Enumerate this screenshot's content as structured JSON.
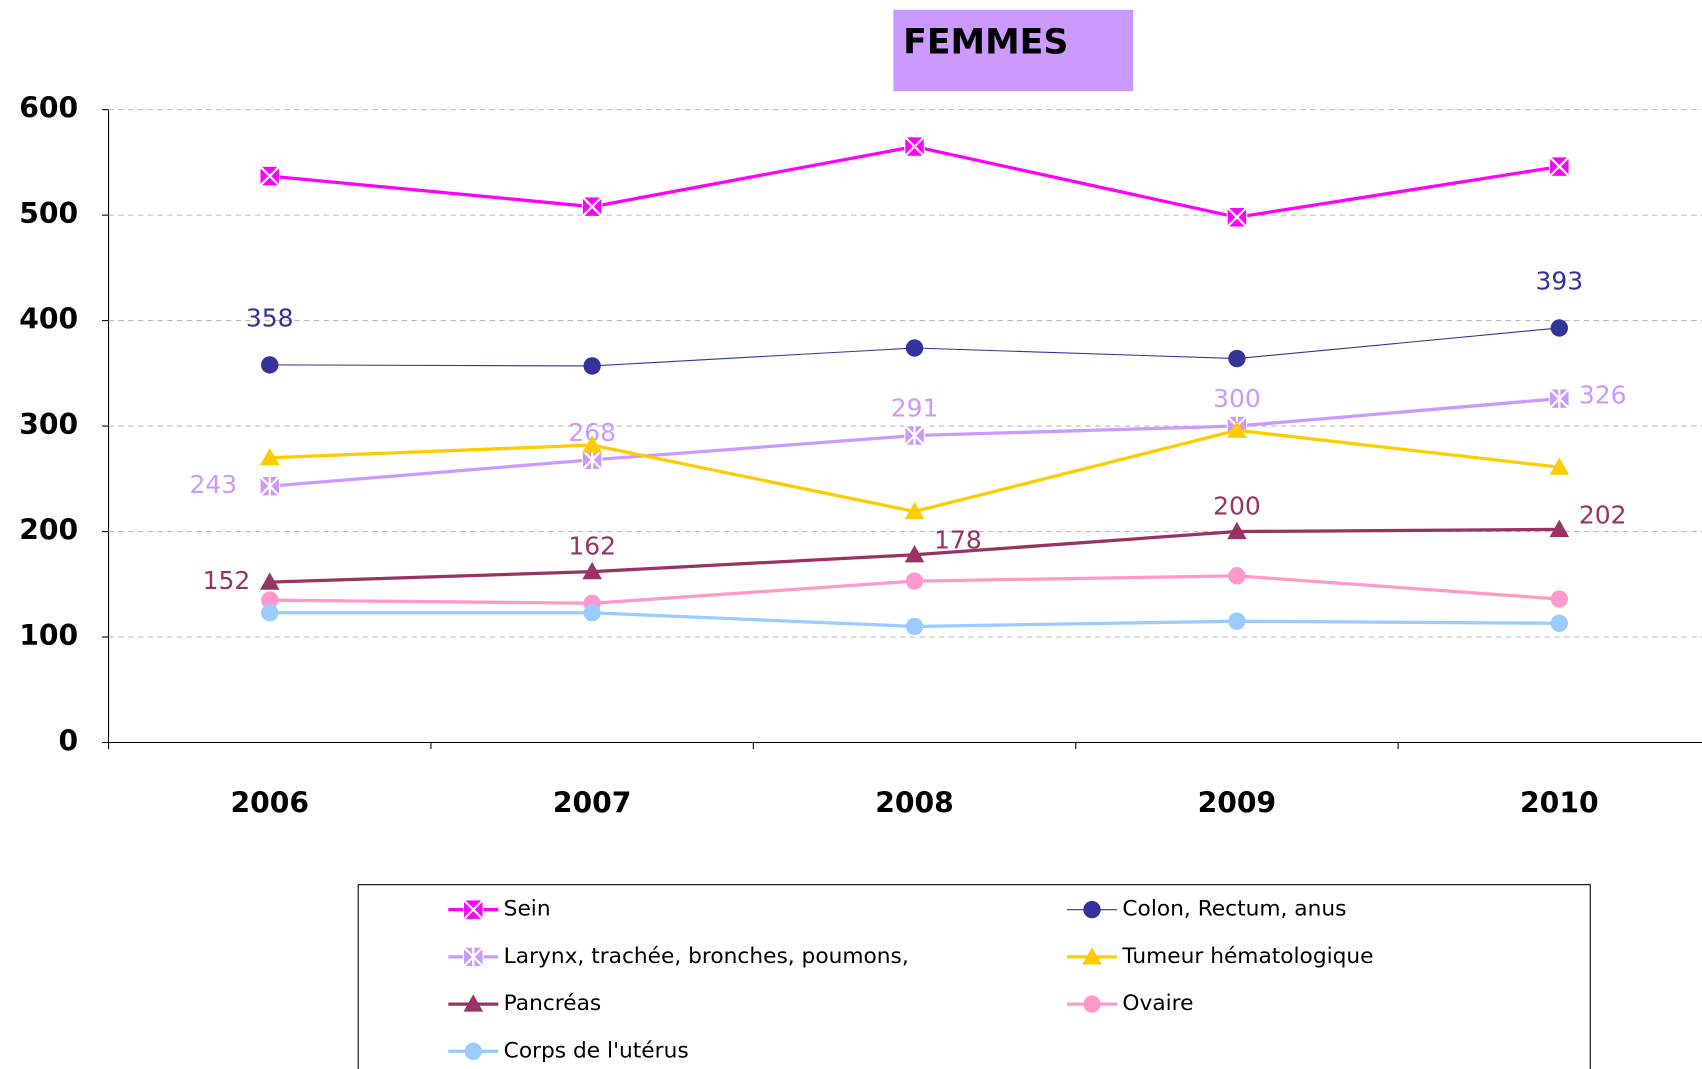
{
  "chart_data": {
    "type": "line",
    "title": "FEMMES",
    "title_background": "#cc99ff",
    "categories": [
      "2006",
      "2007",
      "2008",
      "2009",
      "2010"
    ],
    "ylim": [
      0,
      600
    ],
    "yticks": [
      0,
      100,
      200,
      300,
      400,
      500,
      600
    ],
    "grid": true,
    "series": [
      {
        "name": "Sein",
        "color": "#ff00ff",
        "marker": "square-x",
        "values": [
          537,
          508,
          565,
          498,
          546
        ]
      },
      {
        "name": "Colon, Rectum, anus",
        "color": "#333399",
        "marker": "circle",
        "values": [
          358,
          357,
          374,
          364,
          393
        ],
        "value_labels": [
          "358",
          null,
          null,
          null,
          "393"
        ]
      },
      {
        "name": "Larynx, trachée, bronches, poumons,",
        "color": "#cc99ff",
        "marker": "square-star",
        "values": [
          243,
          268,
          291,
          300,
          326
        ],
        "value_labels": [
          "243",
          "268",
          "291",
          "300",
          "326"
        ]
      },
      {
        "name": "Tumeur hématologique",
        "color": "#ffcc00",
        "marker": "triangle",
        "values": [
          270,
          282,
          219,
          296,
          261
        ]
      },
      {
        "name": "Pancréas",
        "color": "#993366",
        "marker": "triangle",
        "values": [
          152,
          162,
          178,
          200,
          202
        ],
        "value_labels": [
          "152",
          "162",
          "178",
          "200",
          "202"
        ]
      },
      {
        "name": "Ovaire",
        "color": "#ff99cc",
        "marker": "circle",
        "values": [
          135,
          132,
          153,
          158,
          136
        ]
      },
      {
        "name": "Corps de l'utérus",
        "color": "#99ccff",
        "marker": "circle",
        "values": [
          123,
          123,
          110,
          115,
          113
        ]
      }
    ]
  }
}
